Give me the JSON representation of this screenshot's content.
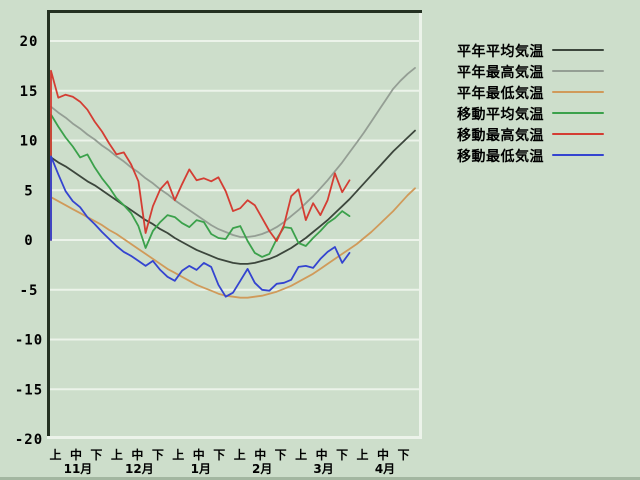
{
  "page": {
    "background": "#cddecb",
    "bottom_strip_color": "#a3b7a1"
  },
  "chart_data": {
    "type": "line",
    "title": "",
    "xlabel": "",
    "ylabel": "",
    "ylim": [
      -20,
      20
    ],
    "ytick_values": [
      20,
      15,
      10,
      5,
      0,
      -5,
      -10,
      -15,
      -20
    ],
    "ytick_labels": [
      "20",
      "15",
      "10",
      "5",
      "0",
      "-5",
      "-10",
      "-15",
      "-20"
    ],
    "grid": true,
    "legend_position": "right",
    "x_axis": {
      "periods_per_month": [
        "上",
        "中",
        "下"
      ],
      "months": [
        "11月",
        "12月",
        "1月",
        "2月",
        "3月",
        "4月"
      ],
      "tick_labels": [
        "上",
        "中",
        "下",
        "上",
        "中",
        "下",
        "上",
        "中",
        "下",
        "上",
        "中",
        "下",
        "上",
        "中",
        "下",
        "上",
        "中",
        "下"
      ]
    },
    "colors": {
      "background": "#cddecb",
      "grid": "#ecf3ea",
      "border_dark": "#243122",
      "border_light": "#ecf3ea",
      "text": "#000000"
    },
    "series": [
      {
        "key": "normal-mean",
        "name": "平年平均気温",
        "color": "#3c463c",
        "end_frac": 1.0,
        "starts_at_zero": false,
        "values": [
          8.3,
          7.8,
          7.4,
          6.9,
          6.4,
          5.9,
          5.5,
          5.0,
          4.5,
          4.0,
          3.5,
          3.0,
          2.5,
          2.0,
          1.6,
          1.1,
          0.7,
          0.2,
          -0.2,
          -0.6,
          -1.0,
          -1.3,
          -1.6,
          -1.9,
          -2.1,
          -2.3,
          -2.4,
          -2.4,
          -2.3,
          -2.1,
          -1.9,
          -1.6,
          -1.2,
          -0.8,
          -0.3,
          0.2,
          0.8,
          1.4,
          2.0,
          2.7,
          3.4,
          4.1,
          4.9,
          5.7,
          6.5,
          7.3,
          8.1,
          8.9,
          9.6,
          10.3,
          11.0
        ]
      },
      {
        "key": "normal-max",
        "name": "平年最高気温",
        "color": "#949e94",
        "end_frac": 1.0,
        "starts_at_zero": false,
        "values": [
          13.4,
          12.8,
          12.3,
          11.7,
          11.2,
          10.6,
          10.1,
          9.5,
          9.0,
          8.4,
          7.9,
          7.3,
          6.8,
          6.2,
          5.7,
          5.1,
          4.6,
          4.0,
          3.5,
          3.0,
          2.5,
          2.0,
          1.5,
          1.1,
          0.8,
          0.5,
          0.3,
          0.3,
          0.4,
          0.6,
          0.9,
          1.3,
          1.8,
          2.4,
          3.0,
          3.7,
          4.4,
          5.2,
          6.0,
          6.9,
          7.8,
          8.8,
          9.8,
          10.8,
          11.9,
          13.0,
          14.1,
          15.2,
          16.0,
          16.7,
          17.3
        ]
      },
      {
        "key": "normal-min",
        "name": "平年最低気温",
        "color": "#d09a5a",
        "end_frac": 1.0,
        "starts_at_zero": false,
        "values": [
          4.3,
          3.9,
          3.5,
          3.1,
          2.7,
          2.3,
          1.9,
          1.5,
          1.0,
          0.6,
          0.1,
          -0.4,
          -0.9,
          -1.4,
          -1.9,
          -2.4,
          -2.9,
          -3.3,
          -3.7,
          -4.1,
          -4.5,
          -4.8,
          -5.1,
          -5.4,
          -5.6,
          -5.7,
          -5.8,
          -5.8,
          -5.7,
          -5.6,
          -5.4,
          -5.2,
          -4.9,
          -4.6,
          -4.2,
          -3.8,
          -3.4,
          -2.9,
          -2.4,
          -1.9,
          -1.4,
          -0.9,
          -0.4,
          0.2,
          0.8,
          1.5,
          2.2,
          2.9,
          3.7,
          4.5,
          5.2
        ]
      },
      {
        "key": "moving-mean",
        "name": "移動平均気温",
        "color": "#3ba14b",
        "end_frac": 0.82,
        "starts_at_zero": true,
        "values": [
          12.6,
          11.4,
          10.3,
          9.4,
          8.3,
          8.6,
          7.3,
          6.2,
          5.3,
          4.2,
          3.5,
          2.7,
          1.4,
          -0.8,
          0.9,
          1.8,
          2.5,
          2.3,
          1.7,
          1.3,
          2.0,
          1.8,
          0.6,
          0.2,
          0.1,
          1.2,
          1.4,
          -0.1,
          -1.3,
          -1.7,
          -1.4,
          0.1,
          1.3,
          1.2,
          -0.3,
          -0.6,
          0.2,
          0.9,
          1.7,
          2.2,
          2.9,
          2.4
        ]
      },
      {
        "key": "moving-max",
        "name": "移動最高気温",
        "color": "#d43d33",
        "end_frac": 0.82,
        "starts_at_zero": true,
        "values": [
          17.0,
          14.3,
          14.6,
          14.4,
          13.9,
          13.1,
          11.9,
          10.9,
          9.7,
          8.6,
          8.8,
          7.6,
          5.9,
          0.7,
          3.4,
          5.1,
          5.9,
          4.0,
          5.6,
          7.1,
          6.0,
          6.2,
          5.9,
          6.3,
          4.9,
          2.9,
          3.2,
          4.0,
          3.5,
          2.2,
          0.9,
          -0.1,
          1.5,
          4.4,
          5.1,
          2.0,
          3.7,
          2.5,
          4.0,
          6.7,
          4.8,
          6.0
        ]
      },
      {
        "key": "moving-min",
        "name": "移動最低気温",
        "color": "#3444d0",
        "end_frac": 0.82,
        "starts_at_zero": true,
        "values": [
          8.4,
          6.6,
          4.9,
          3.9,
          3.3,
          2.3,
          1.6,
          0.8,
          0.1,
          -0.6,
          -1.2,
          -1.6,
          -2.1,
          -2.6,
          -2.1,
          -3.0,
          -3.7,
          -4.1,
          -3.1,
          -2.6,
          -3.0,
          -2.3,
          -2.7,
          -4.5,
          -5.7,
          -5.3,
          -4.1,
          -2.9,
          -4.3,
          -5.0,
          -5.1,
          -4.4,
          -4.3,
          -4.0,
          -2.7,
          -2.6,
          -2.8,
          -1.9,
          -1.2,
          -0.7,
          -2.3,
          -1.3
        ]
      }
    ]
  }
}
